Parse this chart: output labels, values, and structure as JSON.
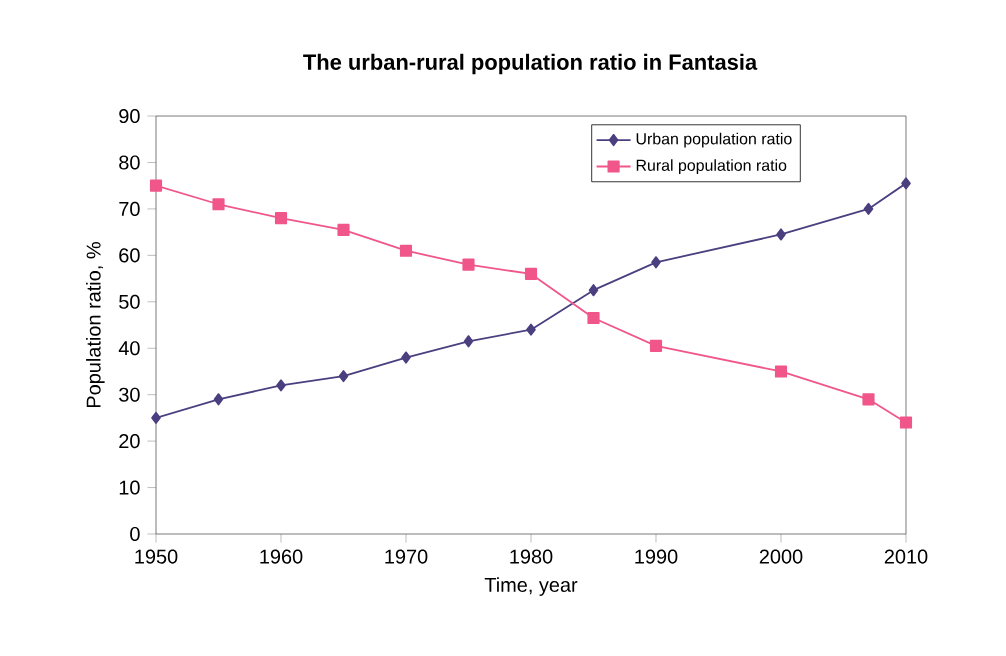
{
  "chart_data": {
    "type": "line",
    "title": "The urban-rural population ratio in Fantasia",
    "xlabel": "Time, year",
    "ylabel": "Population ratio, %",
    "x": [
      1950,
      1955,
      1960,
      1965,
      1970,
      1975,
      1980,
      1985,
      1990,
      2000,
      2007,
      2010
    ],
    "series": [
      {
        "name": "Urban population ratio",
        "color": "#4b3f7f",
        "marker": "diamond",
        "values": [
          25,
          29,
          32,
          34,
          38,
          41.5,
          44,
          52.5,
          58.5,
          64.5,
          70,
          75.5
        ]
      },
      {
        "name": "Rural population ratio",
        "color": "#f0568a",
        "marker": "square",
        "values": [
          75,
          71,
          68,
          65.5,
          61,
          58,
          56,
          46.5,
          40.5,
          35,
          29,
          24
        ]
      }
    ],
    "xlim": [
      1950,
      2010
    ],
    "xticks": [
      1950,
      1960,
      1970,
      1980,
      1990,
      2000,
      2010
    ],
    "ylim": [
      0,
      90
    ],
    "yticks": [
      0,
      10,
      20,
      30,
      40,
      50,
      60,
      70,
      80,
      90
    ],
    "grid": false,
    "legend": "top",
    "line_style": "solid"
  }
}
